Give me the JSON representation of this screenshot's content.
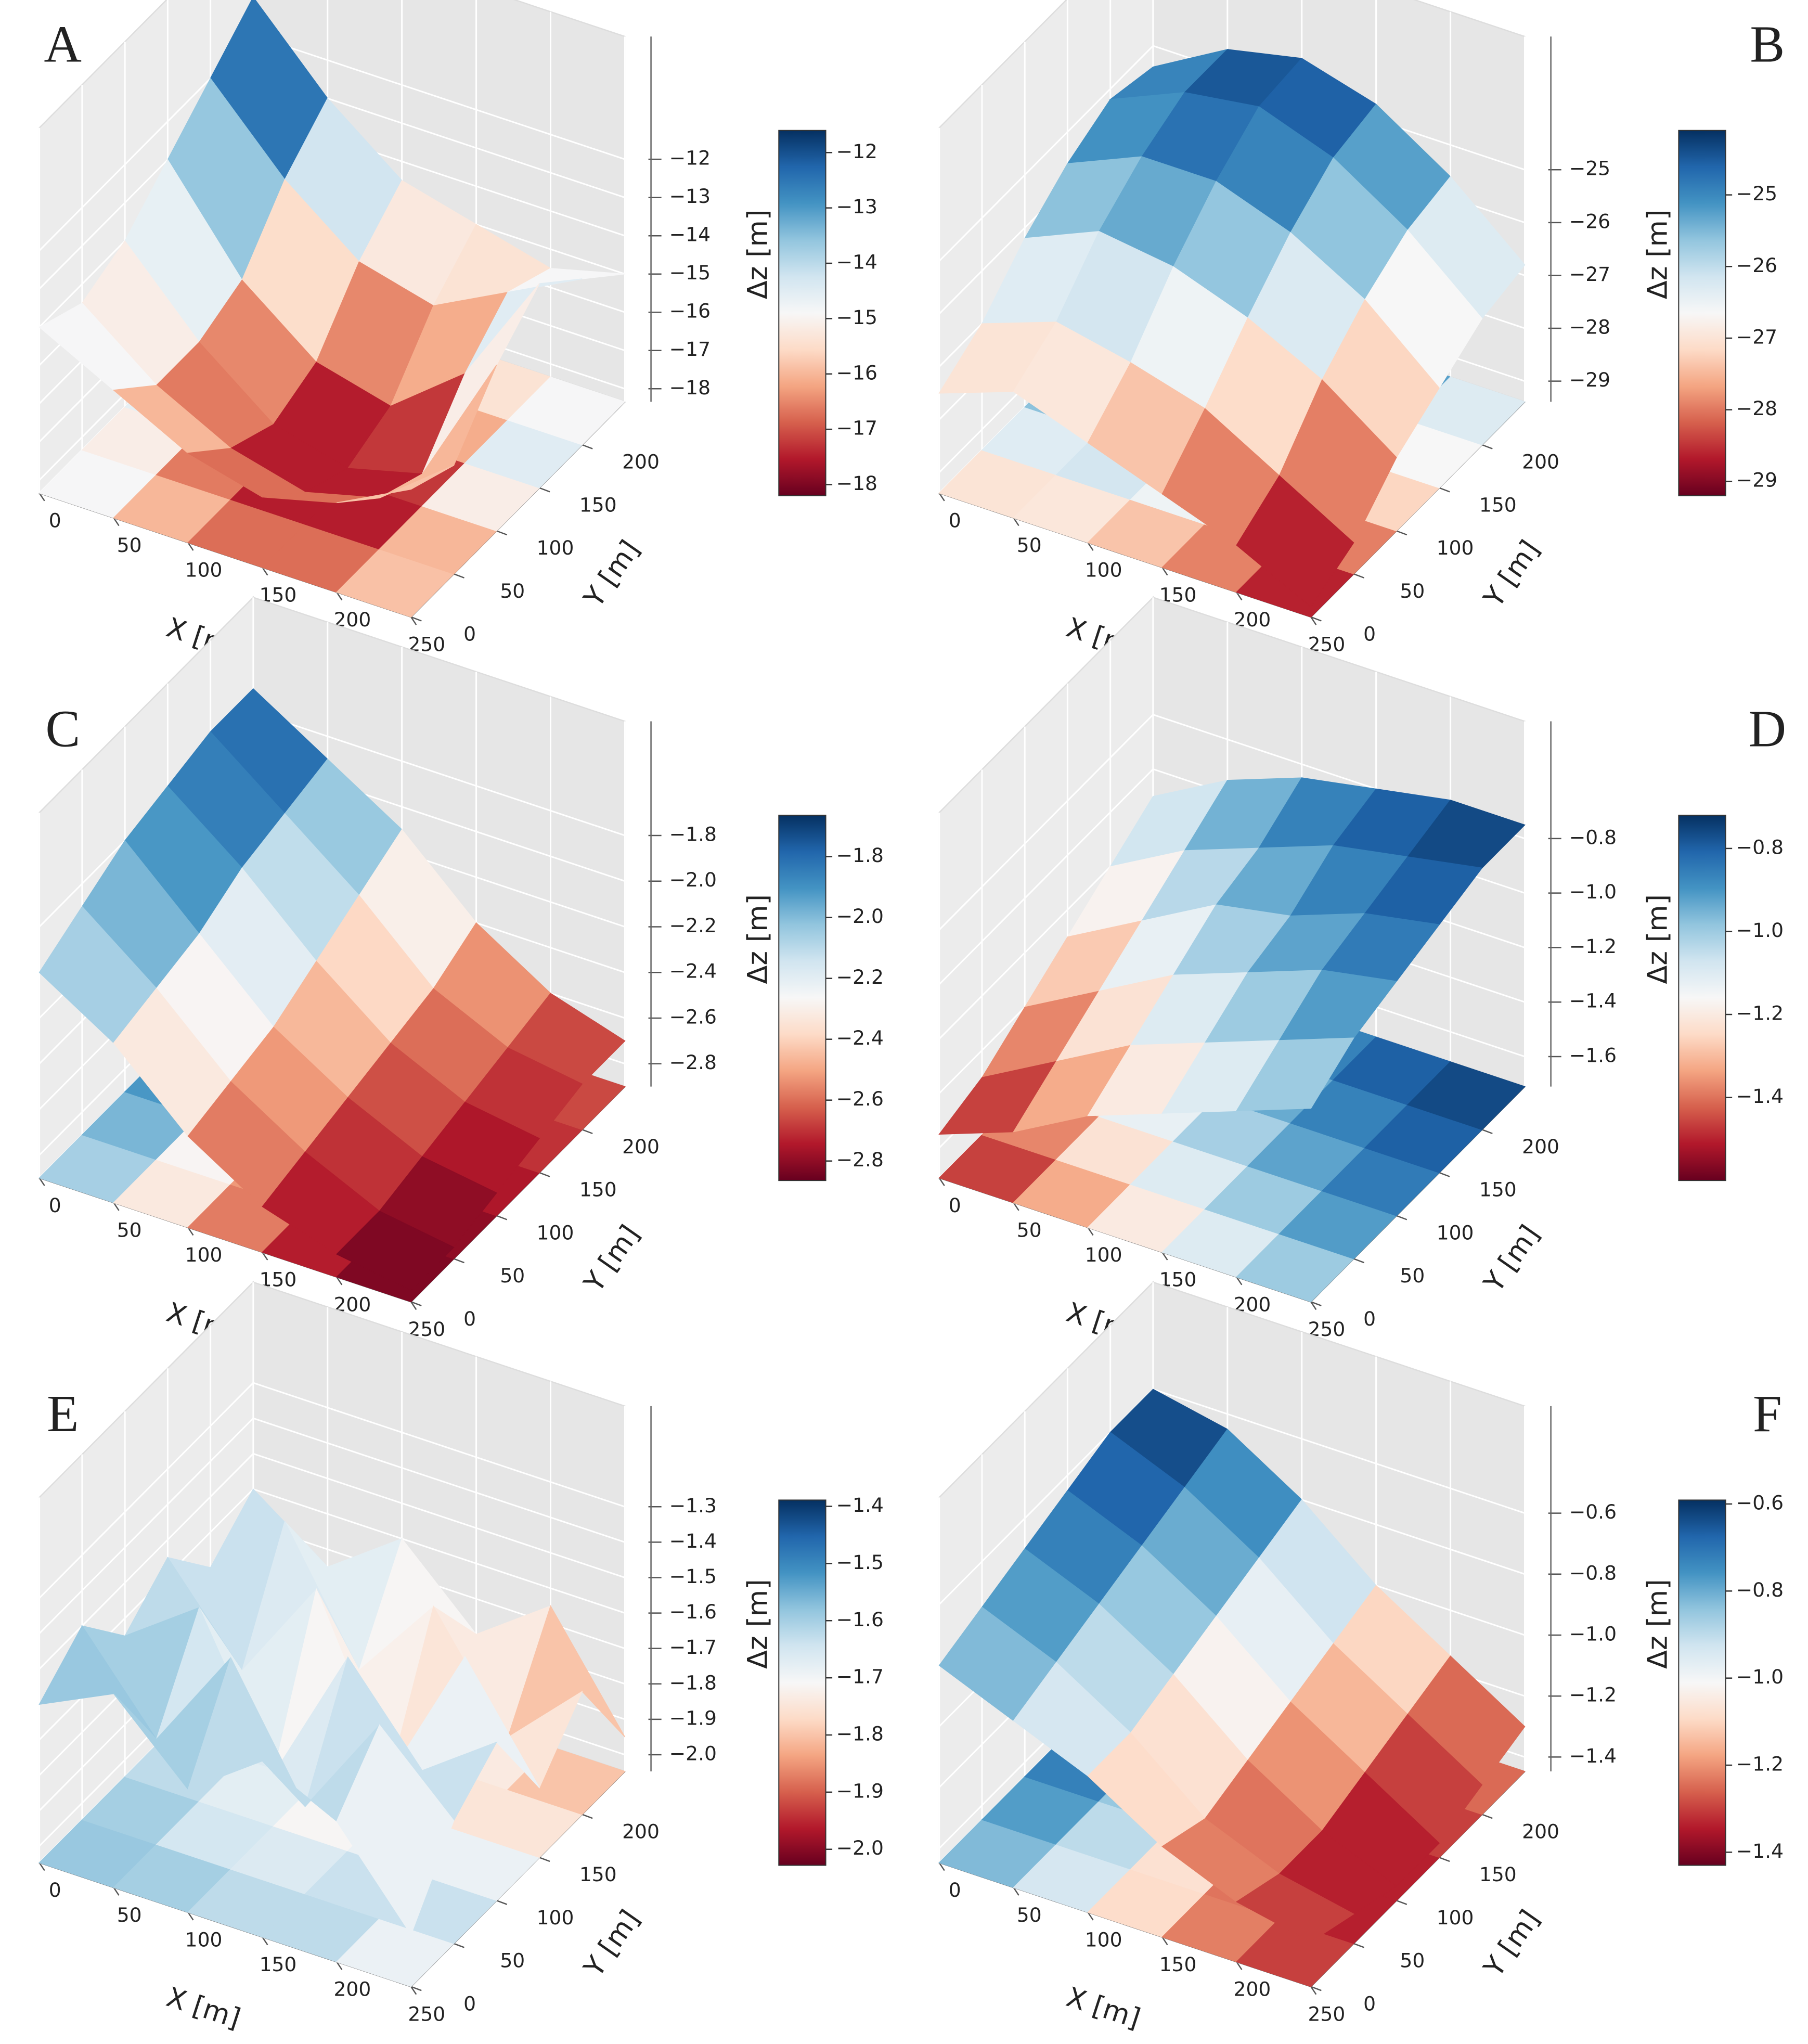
{
  "colormap": [
    "#67001f",
    "#b2182b",
    "#d6604d",
    "#f4a582",
    "#fddbc7",
    "#f7f7f7",
    "#d1e5f0",
    "#92c5de",
    "#4393c3",
    "#2166ac",
    "#053061"
  ],
  "chart_data": [
    {
      "type": "surface",
      "panel": "A",
      "xlabel": "X [m]",
      "ylabel": "Y [m]",
      "clabel": "Δz [m]",
      "x": [
        0,
        50,
        100,
        150,
        200,
        250
      ],
      "y": [
        0,
        50,
        100,
        150,
        200,
        250
      ],
      "xlim": [
        0,
        250
      ],
      "ylim": [
        0,
        250
      ],
      "zlim": [
        -18.34,
        -8.79
      ],
      "xticks": [
        0,
        50,
        100,
        150,
        200,
        250
      ],
      "yticks": [
        0,
        50,
        100,
        150,
        200
      ],
      "zticks": [
        {
          "value": -12,
          "label": "−12"
        },
        {
          "value": -13,
          "label": "−13"
        },
        {
          "value": -14,
          "label": "−14"
        },
        {
          "value": -15,
          "label": "−15"
        },
        {
          "value": -16,
          "label": "−16"
        },
        {
          "value": -17,
          "label": "−17"
        },
        {
          "value": -18,
          "label": "−18"
        }
      ],
      "clim": [
        -18.2,
        -11.6
      ],
      "cticks": [
        {
          "value": -12,
          "label": "−12"
        },
        {
          "value": -13,
          "label": "−13"
        },
        {
          "value": -14,
          "label": "−14"
        },
        {
          "value": -15,
          "label": "−15"
        },
        {
          "value": -16,
          "label": "−16"
        },
        {
          "value": -17,
          "label": "−17"
        },
        {
          "value": -18,
          "label": "−18"
        }
      ],
      "z": [
        [
          -14,
          -15,
          -16,
          -16.5,
          -16,
          -15
        ],
        [
          -14.5,
          -16,
          -17,
          -17.5,
          -17,
          -15.5
        ],
        [
          -14,
          -16,
          -17.5,
          -18,
          -17.5,
          -14
        ],
        [
          -13,
          -15.5,
          -17,
          -17.5,
          -16,
          -13
        ],
        [
          -12,
          -14,
          -15.5,
          -16,
          -15,
          -14
        ],
        [
          -11,
          -13,
          -14.5,
          -15,
          -15.5,
          -15
        ]
      ]
    },
    {
      "type": "surface",
      "panel": "B",
      "xlabel": "X [m]",
      "ylabel": "Y [m]",
      "clabel": "Δz [m]",
      "x": [
        0,
        50,
        100,
        150,
        200,
        250
      ],
      "y": [
        0,
        50,
        100,
        150,
        200,
        250
      ],
      "xlim": [
        0,
        250
      ],
      "ylim": [
        0,
        250
      ],
      "zlim": [
        -29.39,
        -22.48
      ],
      "xticks": [
        0,
        50,
        100,
        150,
        200,
        250
      ],
      "yticks": [
        0,
        50,
        100,
        150,
        200
      ],
      "zticks": [
        {
          "value": -25,
          "label": "−25"
        },
        {
          "value": -26,
          "label": "−26"
        },
        {
          "value": -27,
          "label": "−27"
        },
        {
          "value": -28,
          "label": "−28"
        },
        {
          "value": -29,
          "label": "−29"
        }
      ],
      "clim": [
        -29.2,
        -24.1
      ],
      "cticks": [
        {
          "value": -25,
          "label": "−25"
        },
        {
          "value": -26,
          "label": "−26"
        },
        {
          "value": -27,
          "label": "−27"
        },
        {
          "value": -28,
          "label": "−28"
        },
        {
          "value": -29,
          "label": "−29"
        }
      ],
      "z": [
        [
          -27.5,
          -27,
          -27.5,
          -28,
          -28.5,
          -29.2
        ],
        [
          -27,
          -26.5,
          -26.8,
          -27.2,
          -28,
          -28.8
        ],
        [
          -26.2,
          -25.6,
          -25.8,
          -26.3,
          -27,
          -28
        ],
        [
          -25.6,
          -25,
          -25,
          -25.5,
          -26.3,
          -27.5
        ],
        [
          -25.2,
          -24.6,
          -24.4,
          -24.9,
          -25.8,
          -27
        ],
        [
          -25.4,
          -24.6,
          -24.3,
          -24.7,
          -25.6,
          -26.8
        ]
      ]
    },
    {
      "type": "surface",
      "panel": "C",
      "xlabel": "X [m]",
      "ylabel": "Y [m]",
      "clabel": "Δz [m]",
      "x": [
        0,
        50,
        100,
        150,
        200,
        250
      ],
      "y": [
        0,
        50,
        100,
        150,
        200,
        250
      ],
      "xlim": [
        0,
        250
      ],
      "ylim": [
        0,
        250
      ],
      "zlim": [
        -2.9,
        -1.3
      ],
      "xticks": [
        0,
        50,
        100,
        150,
        200,
        250
      ],
      "yticks": [
        0,
        50,
        100,
        150,
        200
      ],
      "zticks": [
        {
          "value": -1.8,
          "label": "−1.8"
        },
        {
          "value": -2.0,
          "label": "−2.0"
        },
        {
          "value": -2.2,
          "label": "−2.2"
        },
        {
          "value": -2.4,
          "label": "−2.4"
        },
        {
          "value": -2.6,
          "label": "−2.6"
        },
        {
          "value": -2.8,
          "label": "−2.8"
        }
      ],
      "clim": [
        -2.864,
        -1.664
      ],
      "cticks": [
        {
          "value": -1.8,
          "label": "−1.8"
        },
        {
          "value": -2.0,
          "label": "−2.0"
        },
        {
          "value": -2.2,
          "label": "−2.2"
        },
        {
          "value": -2.4,
          "label": "−2.4"
        },
        {
          "value": -2.6,
          "label": "−2.6"
        },
        {
          "value": -2.8,
          "label": "−2.8"
        }
      ],
      "z": [
        [
          -2.0,
          -2.2,
          -2.5,
          -2.7,
          -2.8,
          -2.85
        ],
        [
          -1.9,
          -2.15,
          -2.45,
          -2.65,
          -2.8,
          -2.85
        ],
        [
          -1.8,
          -2.1,
          -2.4,
          -2.6,
          -2.75,
          -2.8
        ],
        [
          -1.75,
          -2.0,
          -2.3,
          -2.55,
          -2.7,
          -2.75
        ],
        [
          -1.7,
          -1.95,
          -2.2,
          -2.5,
          -2.65,
          -2.7
        ],
        [
          -1.7,
          -1.9,
          -2.1,
          -2.4,
          -2.6,
          -2.7
        ]
      ]
    },
    {
      "type": "surface",
      "panel": "D",
      "xlabel": "X [m]",
      "ylabel": "Y [m]",
      "clabel": "Δz [m]",
      "x": [
        0,
        50,
        100,
        150,
        200,
        250
      ],
      "y": [
        0,
        50,
        100,
        150,
        200,
        250
      ],
      "xlim": [
        0,
        250
      ],
      "ylim": [
        0,
        250
      ],
      "zlim": [
        -1.71,
        -0.37
      ],
      "xticks": [
        0,
        50,
        100,
        150,
        200,
        250
      ],
      "yticks": [
        0,
        50,
        100,
        150,
        200
      ],
      "zticks": [
        {
          "value": -0.8,
          "label": "−0.8"
        },
        {
          "value": -1.0,
          "label": "−1.0"
        },
        {
          "value": -1.2,
          "label": "−1.2"
        },
        {
          "value": -1.4,
          "label": "−1.4"
        },
        {
          "value": -1.6,
          "label": "−1.6"
        }
      ],
      "clim": [
        -1.6,
        -0.72
      ],
      "cticks": [
        {
          "value": -0.8,
          "label": "−0.8"
        },
        {
          "value": -1.0,
          "label": "−1.0"
        },
        {
          "value": -1.2,
          "label": "−1.2"
        },
        {
          "value": -1.4,
          "label": "−1.4"
        }
      ],
      "z": [
        [
          -1.55,
          -1.45,
          -1.3,
          -1.2,
          -1.1,
          -1.0
        ],
        [
          -1.5,
          -1.35,
          -1.2,
          -1.1,
          -1.0,
          -0.9
        ],
        [
          -1.4,
          -1.25,
          -1.1,
          -1.0,
          -0.9,
          -0.85
        ],
        [
          -1.3,
          -1.15,
          -1.0,
          -0.95,
          -0.85,
          -0.8
        ],
        [
          -1.2,
          -1.05,
          -0.95,
          -0.85,
          -0.8,
          -0.75
        ],
        [
          -1.1,
          -0.95,
          -0.85,
          -0.8,
          -0.75,
          -0.75
        ]
      ]
    },
    {
      "type": "surface",
      "panel": "E",
      "xlabel": "X [m]",
      "ylabel": "Y [m]",
      "clabel": "Δz [m]",
      "x": [
        0,
        50,
        100,
        150,
        200,
        250
      ],
      "y": [
        0,
        50,
        100,
        150,
        200,
        250
      ],
      "xlim": [
        0,
        250
      ],
      "ylim": [
        0,
        250
      ],
      "zlim": [
        -2.047,
        -1.016
      ],
      "xticks": [
        0,
        50,
        100,
        150,
        200,
        250
      ],
      "yticks": [
        0,
        50,
        100,
        150,
        200
      ],
      "zticks": [
        {
          "value": -1.3,
          "label": "−1.3"
        },
        {
          "value": -1.4,
          "label": "−1.4"
        },
        {
          "value": -1.5,
          "label": "−1.5"
        },
        {
          "value": -1.6,
          "label": "−1.6"
        },
        {
          "value": -1.7,
          "label": "−1.7"
        },
        {
          "value": -1.8,
          "label": "−1.8"
        },
        {
          "value": -1.9,
          "label": "−1.9"
        },
        {
          "value": -2.0,
          "label": "−2.0"
        }
      ],
      "clim": [
        -2.028,
        -1.389
      ],
      "cticks": [
        {
          "value": -1.4,
          "label": "−1.4"
        },
        {
          "value": -1.5,
          "label": "−1.5"
        },
        {
          "value": -1.6,
          "label": "−1.6"
        },
        {
          "value": -1.7,
          "label": "−1.7"
        },
        {
          "value": -1.8,
          "label": "−1.8"
        },
        {
          "value": -1.9,
          "label": "−1.9"
        },
        {
          "value": -2.0,
          "label": "−2.0"
        }
      ],
      "z": [
        [
          -1.6,
          -1.5,
          -1.7,
          -1.55,
          -1.65,
          -1.9
        ],
        [
          -1.5,
          -1.75,
          -1.45,
          -1.8,
          -1.5,
          -1.7
        ],
        [
          -1.65,
          -1.5,
          -1.9,
          -1.5,
          -1.75,
          -1.6
        ],
        [
          -1.55,
          -1.8,
          -1.5,
          -1.95,
          -1.55,
          -1.85
        ],
        [
          -1.7,
          -1.5,
          -1.85,
          -1.6,
          -1.9,
          -1.7
        ],
        [
          -1.6,
          -1.75,
          -1.6,
          -1.8,
          -1.65,
          -1.95
        ]
      ]
    },
    {
      "type": "surface",
      "panel": "F",
      "xlabel": "X [m]",
      "ylabel": "Y [m]",
      "clabel": "Δz [m]",
      "x": [
        0,
        50,
        100,
        150,
        200,
        250
      ],
      "y": [
        0,
        50,
        100,
        150,
        200,
        250
      ],
      "xlim": [
        0,
        250
      ],
      "ylim": [
        0,
        250
      ],
      "zlim": [
        -1.447,
        -0.249
      ],
      "xticks": [
        0,
        50,
        100,
        150,
        200,
        250
      ],
      "yticks": [
        0,
        50,
        100,
        150,
        200
      ],
      "zticks": [
        {
          "value": -0.6,
          "label": "−0.6"
        },
        {
          "value": -0.8,
          "label": "−0.8"
        },
        {
          "value": -1.0,
          "label": "−1.0"
        },
        {
          "value": -1.2,
          "label": "−1.2"
        },
        {
          "value": -1.4,
          "label": "−1.4"
        }
      ],
      "clim": [
        -1.43,
        -0.591
      ],
      "cticks": [
        {
          "value": -0.6,
          "label": "−0.6"
        },
        {
          "value": -0.8,
          "label": "−0.8"
        },
        {
          "value": -1.0,
          "label": "−1.0"
        },
        {
          "value": -1.2,
          "label": "−1.2"
        },
        {
          "value": -1.4,
          "label": "−1.4"
        }
      ],
      "z": [
        [
          -0.8,
          -0.9,
          -1.0,
          -1.15,
          -1.25,
          -1.3
        ],
        [
          -0.75,
          -0.85,
          -1.0,
          -1.2,
          -1.3,
          -1.35
        ],
        [
          -0.7,
          -0.8,
          -0.95,
          -1.15,
          -1.3,
          -1.4
        ],
        [
          -0.65,
          -0.75,
          -0.9,
          -1.1,
          -1.25,
          -1.4
        ],
        [
          -0.6,
          -0.7,
          -0.85,
          -1.05,
          -1.2,
          -1.35
        ],
        [
          -0.6,
          -0.65,
          -0.8,
          -1.0,
          -1.15,
          -1.3
        ]
      ]
    }
  ]
}
